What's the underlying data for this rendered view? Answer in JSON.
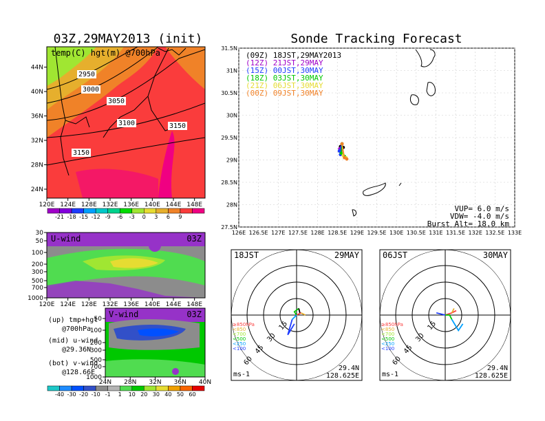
{
  "page": {
    "left_title": "03Z,29MAY2013 (init)",
    "right_title": "Sonde Tracking Forecast"
  },
  "colors": {
    "temp_scale": [
      "#a000c8",
      "#8200dc",
      "#1e3cff",
      "#00a0ff",
      "#00c8c8",
      "#00d28c",
      "#00dc00",
      "#a0e632",
      "#e6dc32",
      "#e6af2d",
      "#f08228",
      "#fa3c3c",
      "#f00082"
    ],
    "wind_scale": [
      "#1ec8c8",
      "#1e8cff",
      "#0050ff",
      "#3250c8",
      "#8c8c8c",
      "#b4b4b4",
      "#50dc50",
      "#00c800",
      "#a0e632",
      "#e6dc32",
      "#f0a000",
      "#fa6400",
      "#e60000"
    ],
    "track_times": [
      "#000000",
      "#a000c8",
      "#1e3cff",
      "#00c800",
      "#e6dc32",
      "#f08228"
    ]
  },
  "chart_data": [
    {
      "id": "temp_map",
      "type": "heatmap",
      "title": "temp(C) hgt(m) @700hPa",
      "x_ticks": [
        "120E",
        "124E",
        "128E",
        "132E",
        "136E",
        "140E",
        "144E",
        "148E"
      ],
      "y_ticks": [
        "24N",
        "28N",
        "32N",
        "36N",
        "40N",
        "44N"
      ],
      "xlim": [
        120,
        150
      ],
      "ylim": [
        22,
        48
      ],
      "contour_labels": [
        "2950",
        "3000",
        "3050",
        "3100",
        "3150",
        "3150"
      ],
      "colorbar_labels": [
        "-21",
        "-18",
        "-15",
        "-12",
        "-9",
        "-6",
        "-3",
        "0",
        "3",
        "6",
        "9"
      ]
    },
    {
      "id": "u_wind",
      "type": "heatmap",
      "title": "U-wind",
      "time_label": "03Z",
      "x_ticks": [
        "120E",
        "124E",
        "128E",
        "132E",
        "136E",
        "140E",
        "144E",
        "148E"
      ],
      "y_ticks": [
        "30",
        "50",
        "100",
        "200",
        "300",
        "500",
        "700",
        "1000"
      ],
      "y_scale": "log (pressure)"
    },
    {
      "id": "v_wind",
      "type": "heatmap",
      "title": "V-wind",
      "time_label": "03Z",
      "x_ticks": [
        "24N",
        "28N",
        "32N",
        "36N",
        "40N"
      ],
      "y_ticks": [
        "50",
        "100",
        "200",
        "300",
        "500",
        "700",
        "1000"
      ],
      "y_scale": "log (pressure)",
      "colorbar_labels": [
        "-40",
        "-30",
        "-20",
        "-10",
        "-1",
        "1",
        "10",
        "20",
        "30",
        "40",
        "50",
        "60"
      ]
    },
    {
      "id": "track_map",
      "type": "scatter",
      "title": "Sonde Tracking Forecast",
      "x_ticks": [
        "126E",
        "126.5E",
        "127E",
        "127.5E",
        "128E",
        "128.5E",
        "129E",
        "129.5E",
        "130E",
        "130.5E",
        "131E",
        "131.5E",
        "132E",
        "132.5E",
        "133E"
      ],
      "y_ticks": [
        "27.5N",
        "28N",
        "28.5N",
        "29N",
        "29.5N",
        "30N",
        "30.5N",
        "31N",
        "31.5N"
      ],
      "xlim": [
        126,
        133
      ],
      "ylim": [
        27.5,
        31.5
      ],
      "grid": true,
      "launch": {
        "lon": 128.625,
        "lat": 29.36
      },
      "series": [
        {
          "name": "(09Z) 18JST,29MAY2013",
          "points": [
            [
              128.62,
              29.36
            ],
            [
              128.58,
              29.3
            ],
            [
              128.6,
              29.22
            ],
            [
              128.65,
              29.28
            ]
          ]
        },
        {
          "name": "(12Z) 21JST,29MAY",
          "points": [
            [
              128.62,
              29.36
            ],
            [
              128.56,
              29.25
            ],
            [
              128.6,
              29.18
            ]
          ]
        },
        {
          "name": "(15Z) 00JST,30MAY",
          "points": [
            [
              128.62,
              29.36
            ],
            [
              128.55,
              29.2
            ],
            [
              128.58,
              29.12
            ]
          ]
        },
        {
          "name": "(18Z) 03JST,30MAY",
          "points": [
            [
              128.62,
              29.36
            ],
            [
              128.6,
              29.15
            ],
            [
              128.68,
              29.08
            ]
          ]
        },
        {
          "name": "(21Z) 06JST,30MAY",
          "points": [
            [
              128.62,
              29.36
            ],
            [
              128.65,
              29.1
            ],
            [
              128.72,
              29.05
            ]
          ]
        },
        {
          "name": "(00Z) 09JST,30MAY",
          "points": [
            [
              128.62,
              29.36
            ],
            [
              128.68,
              29.05
            ],
            [
              128.74,
              29.02
            ]
          ]
        }
      ],
      "info": [
        "VUP=  6.0 m/s",
        "VDW= -4.0 m/s",
        "Burst Alt= 18.0 km"
      ]
    },
    {
      "id": "hodo_1",
      "type": "line",
      "time_left": "18JST",
      "time_right": "29MAY",
      "ring_labels": [
        "15",
        "30",
        "45",
        "60"
      ],
      "level_legend": [
        "≥850hPa",
        "<850",
        "<700",
        "<500",
        "<250",
        "<100"
      ],
      "unit": "ms-1",
      "lat_label": "29.4N",
      "lon_label": "128.625E",
      "segments": [
        {
          "color": "#fa3c3c",
          "uv": [
            [
              0,
              0
            ],
            [
              4,
              2
            ]
          ]
        },
        {
          "color": "#e6af2d",
          "uv": [
            [
              4,
              2
            ],
            [
              8,
              0
            ]
          ]
        },
        {
          "color": "#00c800",
          "uv": [
            [
              0,
              0
            ],
            [
              -2,
              3
            ],
            [
              2,
              6
            ]
          ]
        },
        {
          "color": "#00a0ff",
          "uv": [
            [
              0,
              0
            ],
            [
              -4,
              -4
            ]
          ]
        },
        {
          "color": "#1e3cff",
          "uv": [
            [
              -4,
              -4
            ],
            [
              -8,
              -18
            ],
            [
              -2,
              -8
            ]
          ]
        },
        {
          "color": "#000000",
          "uv": [
            [
              2,
              6
            ],
            [
              3,
              2
            ]
          ]
        }
      ]
    },
    {
      "id": "hodo_2",
      "type": "line",
      "time_left": "06JST",
      "time_right": "30MAY",
      "ring_labels": [
        "15",
        "30",
        "45",
        "60"
      ],
      "level_legend": [
        "≥850hPa",
        "<850",
        "<700",
        "<500",
        "<250",
        "<100"
      ],
      "unit": "ms-1",
      "lat_label": "29.4N",
      "lon_label": "128.625E",
      "segments": [
        {
          "color": "#fa3c3c",
          "uv": [
            [
              0,
              0
            ],
            [
              6,
              2
            ],
            [
              10,
              4
            ]
          ]
        },
        {
          "color": "#e6af2d",
          "uv": [
            [
              6,
              2
            ],
            [
              8,
              6
            ]
          ]
        },
        {
          "color": "#00c800",
          "uv": [
            [
              0,
              0
            ],
            [
              4,
              0
            ],
            [
              6,
              -4
            ]
          ]
        },
        {
          "color": "#00a0ff",
          "uv": [
            [
              6,
              -4
            ],
            [
              12,
              -14
            ],
            [
              16,
              -8
            ]
          ]
        },
        {
          "color": "#1e3cff",
          "uv": [
            [
              0,
              0
            ],
            [
              -8,
              2
            ]
          ]
        }
      ]
    }
  ],
  "side_labels": {
    "up": "(up) tmp+hgt",
    "up2": "@700hPa",
    "mid": "(mid) u-wind",
    "mid2": "@29.36N",
    "bot": "(bot) v-wind",
    "bot2": "@128.66E"
  }
}
